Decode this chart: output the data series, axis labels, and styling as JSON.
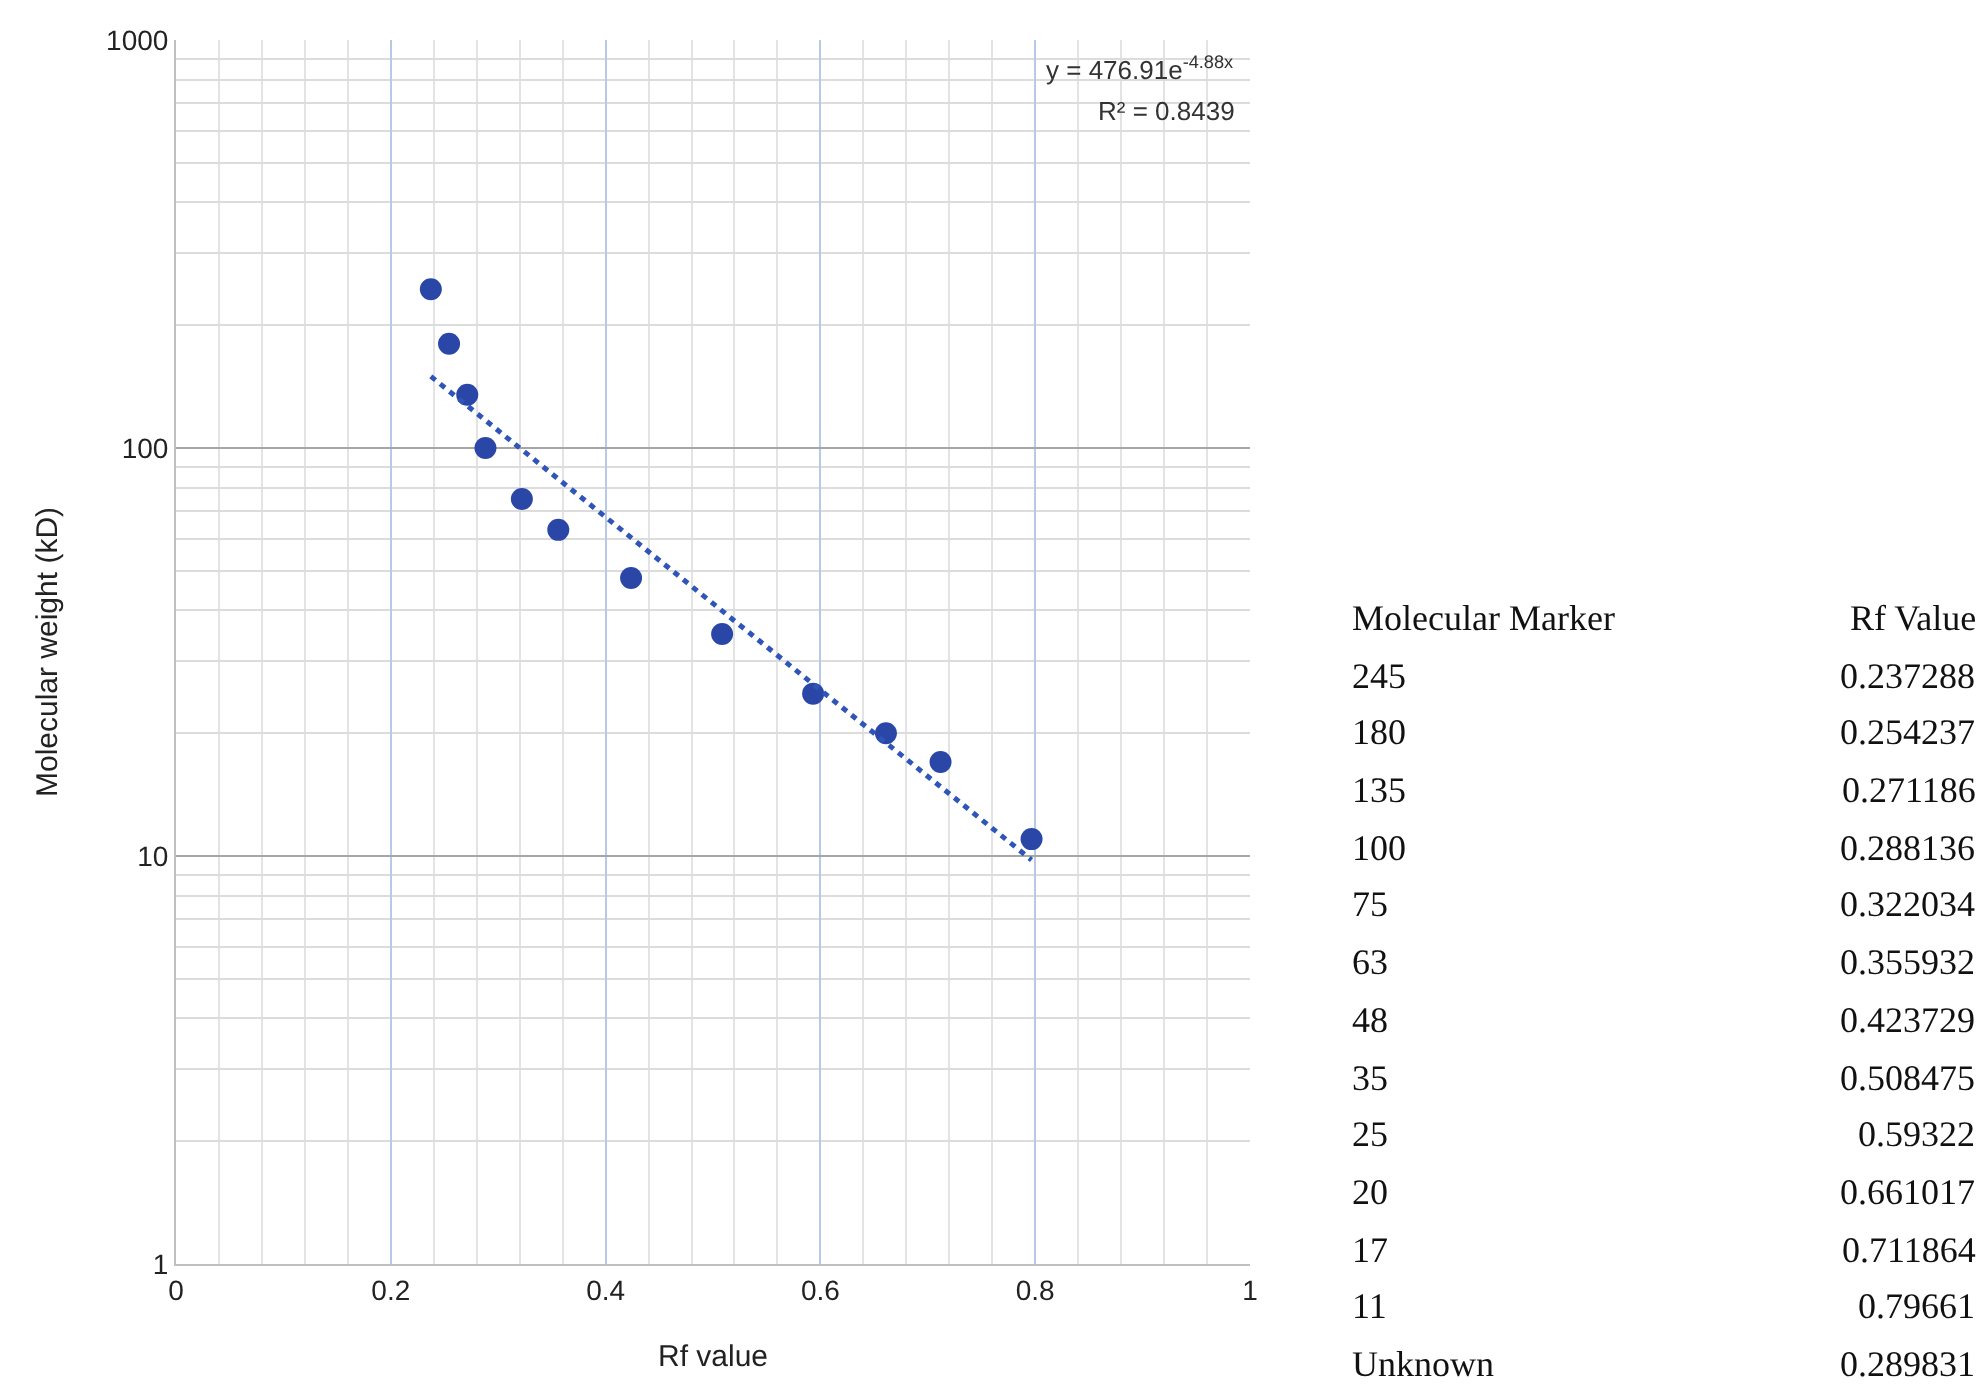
{
  "chart_data": {
    "type": "scatter",
    "xlabel": "Rf value",
    "ylabel": "Molecular weight (kD)",
    "log": "y",
    "grid": true,
    "marker": "circle",
    "xlim": [
      0,
      1
    ],
    "xticks": [
      0,
      0.2,
      0.4,
      0.6,
      0.8,
      1
    ],
    "ylim": [
      1,
      1000
    ],
    "yticks": [
      1,
      10,
      100,
      1000
    ],
    "series": [
      {
        "color": "#2a46a6",
        "x": [
          0.237288,
          0.254237,
          0.271186,
          0.288136,
          0.322034,
          0.355932,
          0.423729,
          0.508475,
          0.59322,
          0.661017,
          0.711864,
          0.79661
        ],
        "values": [
          245,
          180,
          135,
          100,
          75,
          63,
          48,
          35,
          25,
          20,
          17,
          11
        ]
      },
      {
        "type": "line",
        "color": "#2f55b8",
        "line_style": "dotted",
        "marker": "none",
        "x": [
          0.237288,
          0.79661
        ],
        "values": [
          149.8,
          9.78
        ]
      }
    ],
    "annotations": [
      "y = 476.91e$^{-4.88x}$",
      "R² = 0.8439",
      "Molecular Marker",
      "Rf Value",
      "245",
      "0.237288",
      "180",
      "0.254237",
      "135",
      "0.271186",
      "100",
      "0.288136",
      "75",
      "0.322034",
      "63",
      "0.355932",
      "48",
      "0.423729",
      "35",
      "0.508475",
      "25",
      "0.59322",
      "20",
      "0.661017",
      "17",
      "0.711864",
      "11",
      "0.79661",
      "Unknown",
      "0.289831"
    ]
  }
}
